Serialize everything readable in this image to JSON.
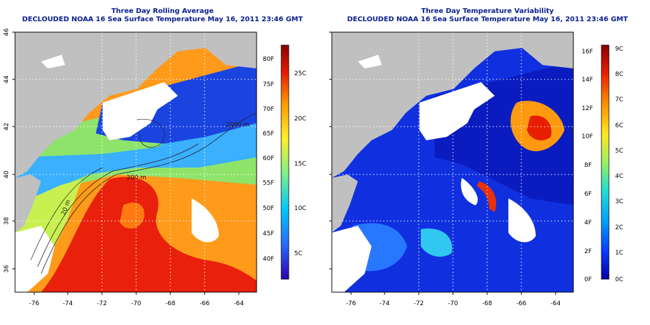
{
  "left_panel": {
    "title": "Three Day Rolling Average",
    "subtitle": "DECLOUDED NOAA 16 Sea Surface Temperature May 16, 2011 23:46 GMT",
    "map_labels": [
      "2000 m",
      "200 m",
      "20 m"
    ],
    "colorbar": {
      "scale_c": [
        "25C",
        "20C",
        "15C",
        "10C",
        "5C"
      ],
      "scale_f": [
        "80F",
        "75F",
        "70F",
        "65F",
        "60F",
        "55F",
        "50F",
        "45F",
        "40F"
      ],
      "colors": [
        "#2a00b0",
        "#2a6cff",
        "#00c8ff",
        "#7df08a",
        "#ffef2a",
        "#ff9a00",
        "#e81e00",
        "#8b0000"
      ]
    }
  },
  "right_panel": {
    "title": "Three Day Temperature Variability",
    "subtitle": "DECLOUDED NOAA 16 Sea Surface Temperature May 16, 2011 23:46 GMT",
    "colorbar": {
      "scale_c": [
        "9C",
        "8C",
        "7C",
        "6C",
        "5C",
        "4C",
        "3C",
        "2C",
        "1C",
        "0C"
      ],
      "scale_f": [
        "16F",
        "14F",
        "12F",
        "10F",
        "8F",
        "6F",
        "4F",
        "2F",
        "0F"
      ],
      "colors": [
        "#0000a8",
        "#0a3cff",
        "#00a0ff",
        "#20e0d0",
        "#9cf060",
        "#ffe81e",
        "#ff9000",
        "#e81e00",
        "#8b0000"
      ]
    }
  },
  "axes": {
    "lon_ticks": [
      "-76",
      "-74",
      "-72",
      "-70",
      "-68",
      "-66",
      "-64"
    ],
    "lat_ticks": [
      "46",
      "44",
      "42",
      "40",
      "38",
      "36"
    ]
  },
  "colors": {
    "land": "#c0c0c0",
    "title": "#0a1f8f",
    "cloud": "#ffffff"
  }
}
